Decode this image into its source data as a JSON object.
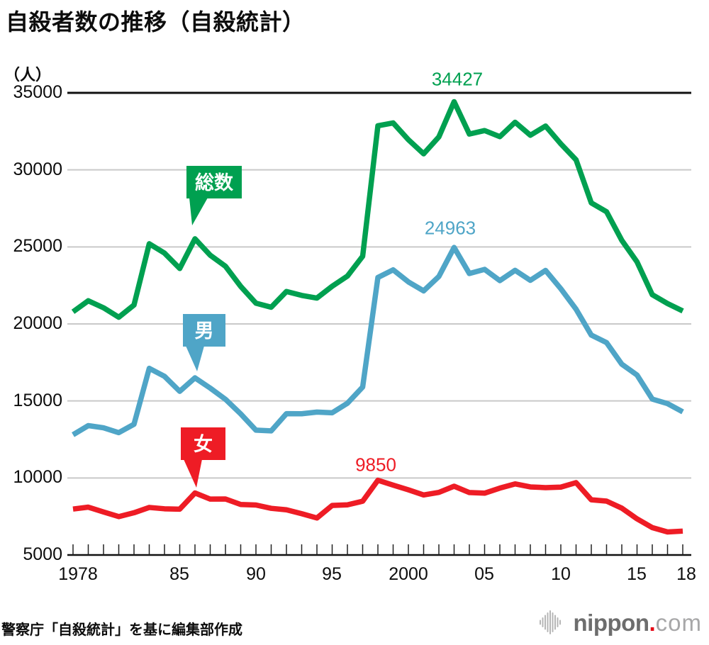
{
  "title": "自殺者数の推移（自殺統計）",
  "source": "警察庁「自殺統計」を基に編集部作成",
  "logo": {
    "wordmark": "nippon",
    "dot": ".",
    "tld": "com",
    "wordmark_color": "#6d6d6d",
    "dot_color": "#e60012",
    "tld_color": "#a7a7a8",
    "icon_color": "#b6b6b6"
  },
  "chart_data": {
    "type": "line",
    "title": "自殺者数の推移（自殺統計）",
    "unit_label": "（人）",
    "ylim": [
      5000,
      35000
    ],
    "grid": "horizontal-only",
    "yticks": [
      35000,
      30000,
      25000,
      20000,
      15000,
      10000,
      5000
    ],
    "ytick_labels": [
      "35000",
      "30000",
      "25000",
      "20000",
      "15000",
      "10000",
      "5000"
    ],
    "x_start_year": 1978,
    "x_end_year": 2018,
    "xtick_labels": [
      "1978",
      "85",
      "90",
      "95",
      "2000",
      "05",
      "10",
      "15",
      "18"
    ],
    "xtick_years": [
      1978,
      1985,
      1990,
      1995,
      2000,
      2005,
      2010,
      2015,
      2018
    ],
    "years": [
      1978,
      1979,
      1980,
      1981,
      1982,
      1983,
      1984,
      1985,
      1986,
      1987,
      1988,
      1989,
      1990,
      1991,
      1992,
      1993,
      1994,
      1995,
      1996,
      1997,
      1998,
      1999,
      2000,
      2001,
      2002,
      2003,
      2004,
      2005,
      2006,
      2007,
      2008,
      2009,
      2010,
      2011,
      2012,
      2013,
      2014,
      2015,
      2016,
      2017,
      2018
    ],
    "series": [
      {
        "name": "総数",
        "key": "total",
        "color": "#00a050",
        "values": [
          20788,
          21503,
          21048,
          20434,
          21228,
          25202,
          24596,
          23599,
          25524,
          24460,
          23742,
          22436,
          21346,
          21084,
          22104,
          21851,
          21679,
          22445,
          23104,
          24391,
          32863,
          33048,
          31957,
          31042,
          32143,
          34427,
          32325,
          32552,
          32155,
          33093,
          32249,
          32845,
          31690,
          30651,
          27858,
          27283,
          25427,
          24025,
          21897,
          21321,
          20840
        ],
        "peak_label": {
          "text": "34427",
          "year": 2003
        }
      },
      {
        "name": "男",
        "key": "male",
        "color": "#4fa5c7",
        "values": [
          12805,
          13398,
          13258,
          12942,
          13486,
          17116,
          16597,
          15624,
          16499,
          15833,
          15107,
          14159,
          13102,
          13055,
          14172,
          14169,
          14277,
          14231,
          14850,
          15901,
          23013,
          23512,
          22727,
          22144,
          23080,
          24963,
          23272,
          23540,
          22813,
          23478,
          22831,
          23472,
          22283,
          20955,
          19273,
          18787,
          17386,
          16681,
          15121,
          14826,
          14290
        ],
        "peak_label": {
          "text": "24963",
          "year": 2003
        }
      },
      {
        "name": "女",
        "key": "female",
        "color": "#ee1c25",
        "values": [
          7983,
          8105,
          7790,
          7492,
          7742,
          8086,
          7999,
          7975,
          9025,
          8627,
          8635,
          8277,
          8244,
          8029,
          7932,
          7682,
          7402,
          8214,
          8254,
          8490,
          9850,
          9536,
          9230,
          8898,
          9063,
          9464,
          9053,
          9012,
          9342,
          9615,
          9418,
          9373,
          9407,
          9696,
          8585,
          8496,
          8041,
          7344,
          6776,
          6495,
          6550
        ],
        "peak_label": {
          "text": "9850",
          "year": 1998
        }
      }
    ],
    "callouts": [
      {
        "label": "総数",
        "anchor_year": 1986,
        "series": "total"
      },
      {
        "label": "男",
        "anchor_year": 1986,
        "series": "male"
      },
      {
        "label": "女",
        "anchor_year": 1986,
        "series": "female"
      }
    ],
    "colors": {
      "grid": "#c9c9c9",
      "axis": "#111111",
      "tick": "#222222"
    }
  }
}
